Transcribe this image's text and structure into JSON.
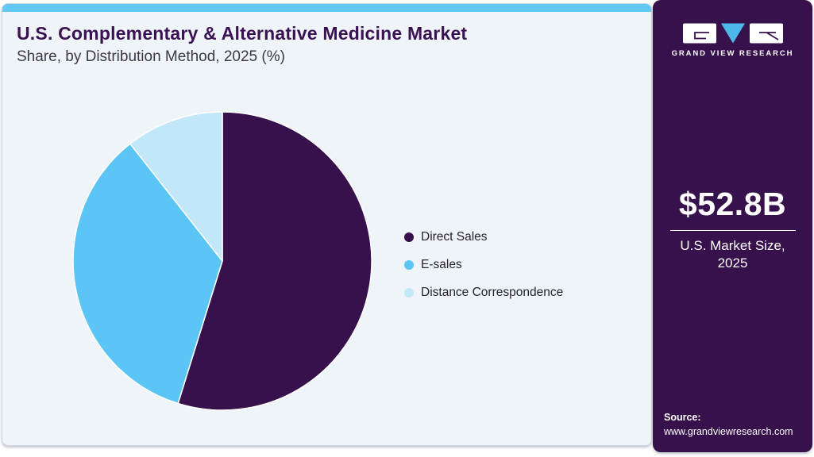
{
  "header": {
    "title": "U.S. Complementary & Alternative Medicine Market",
    "subtitle": "Share, by Distribution Method, 2025 (%)"
  },
  "chart_data": {
    "type": "pie",
    "title": "U.S. Complementary & Alternative Medicine Market Share, by Distribution Method, 2025 (%)",
    "unit": "%",
    "start_angle_deg": 0,
    "direction": "clockwise",
    "legend_position": "right",
    "segments": [
      {
        "label": "Direct Sales",
        "value": 54.8,
        "color": "#36114c"
      },
      {
        "label": "E-sales",
        "value": 34.6,
        "color": "#5bc6f5"
      },
      {
        "label": "Distance Correspondence",
        "value": 10.6,
        "color": "#c2e7f8"
      }
    ]
  },
  "sidebar": {
    "brand": "GRAND VIEW RESEARCH",
    "market_size_value": "$52.8B",
    "market_size_label": "U.S. Market Size, 2025",
    "source_label": "Source:",
    "source_url": "www.grandviewresearch.com"
  },
  "colors": {
    "accent_bar": "#64c9f2",
    "card_bg": "#eff4f9",
    "card_border": "#ccd6df",
    "sidebar_bg": "#36114c",
    "title_text": "#3a1253",
    "subtitle_text": "#3c3848",
    "legend_text": "#25222f",
    "logo_triangle": "#4db9ea"
  }
}
